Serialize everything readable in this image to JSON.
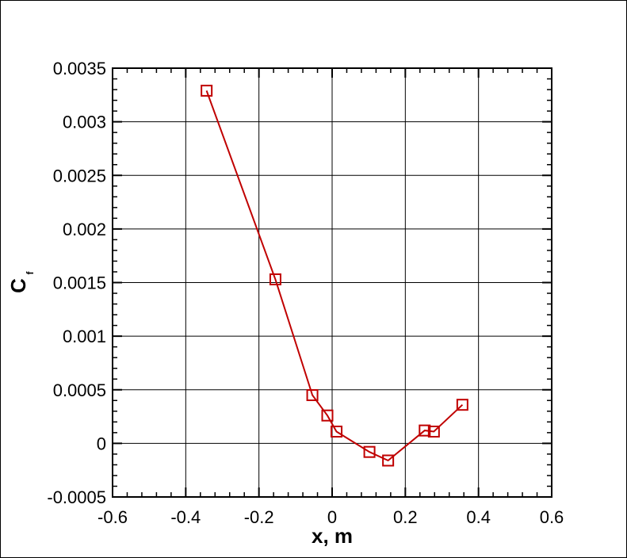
{
  "chart_data": {
    "type": "line",
    "title": "",
    "xlabel": "x, m",
    "ylabel": "C",
    "ylabel_subscript": "f",
    "xlim": [
      -0.6,
      0.6
    ],
    "ylim": [
      -0.0005,
      0.0035
    ],
    "x_ticks": [
      -0.6,
      -0.4,
      -0.2,
      0,
      0.2,
      0.4,
      0.6
    ],
    "x_tick_labels": [
      "-0.6",
      "-0.4",
      "-0.2",
      "0",
      "0.2",
      "0.4",
      "0.6"
    ],
    "y_ticks": [
      -0.0005,
      0,
      0.0005,
      0.001,
      0.0015,
      0.002,
      0.0025,
      0.003,
      0.0035
    ],
    "y_tick_labels": [
      "-0.0005",
      "0",
      "0.0005",
      "0.001",
      "0.0015",
      "0.002",
      "0.0025",
      "0.003",
      "0.0035"
    ],
    "grid": true,
    "series": [
      {
        "color": "#c00000",
        "marker": "square",
        "x": [
          -0.343,
          -0.155,
          -0.054,
          -0.013,
          0.012,
          0.102,
          0.153,
          0.253,
          0.278,
          0.356
        ],
        "y": [
          0.00329,
          0.00153,
          0.00045,
          0.00026,
          0.00011,
          -8e-05,
          -0.00016,
          0.00012,
          0.00011,
          0.00036
        ]
      }
    ]
  }
}
